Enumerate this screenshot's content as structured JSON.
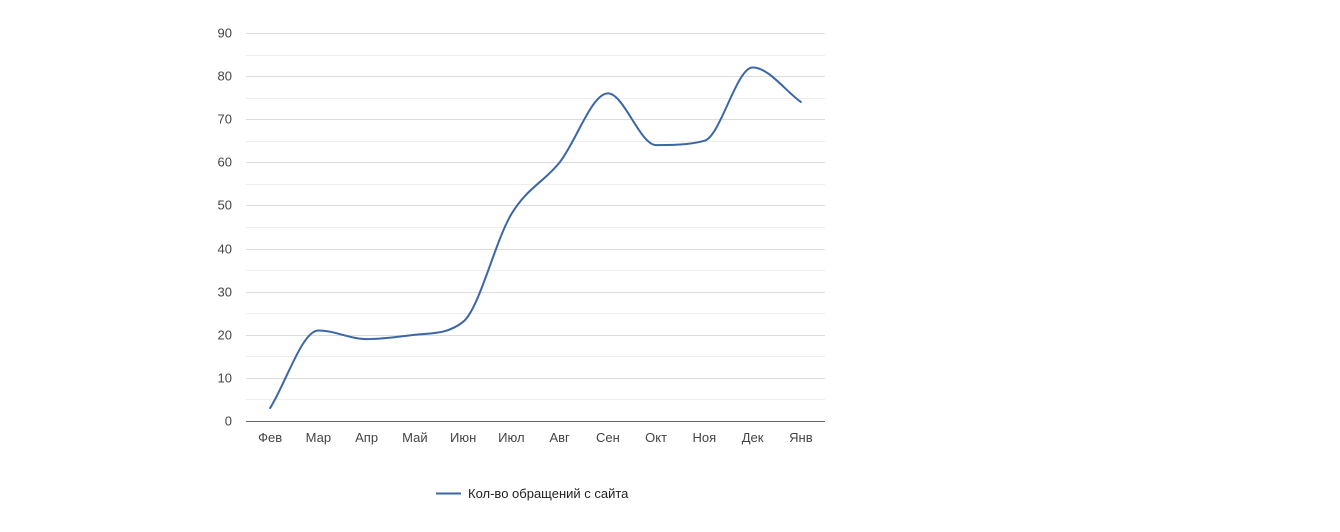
{
  "chart_data": {
    "type": "line",
    "categories": [
      "Фев",
      "Мар",
      "Апр",
      "Май",
      "Июн",
      "Июл",
      "Авг",
      "Сен",
      "Окт",
      "Ноя",
      "Дек",
      "Янв"
    ],
    "series": [
      {
        "name": "Кол-во обращений с сайта",
        "values": [
          3,
          21,
          19,
          20,
          23,
          48,
          60,
          76,
          64,
          65,
          82,
          74
        ],
        "color": "#3b67a7"
      }
    ],
    "ylim": [
      0,
      90
    ],
    "yticks": [
      0,
      10,
      20,
      30,
      40,
      50,
      60,
      70,
      80,
      90
    ],
    "grid": true,
    "smooth": true,
    "legend_position": "bottom",
    "colors": {
      "major_grid": "#dcdcdc",
      "minor_grid": "#eeeeee",
      "axis": "#666666"
    }
  }
}
